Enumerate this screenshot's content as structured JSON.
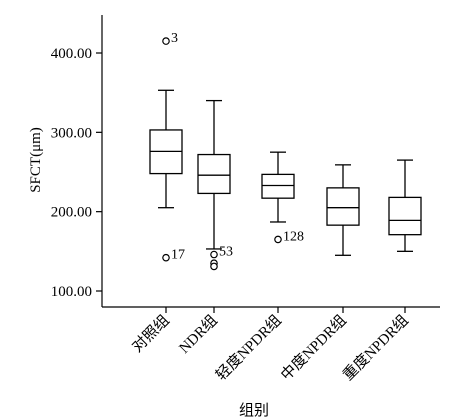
{
  "chart_data": {
    "type": "boxplot",
    "xlabel": "组别",
    "ylabel": "SFCT(μm)",
    "ylim": [
      80,
      450
    ],
    "y_ticks": [
      "100.00",
      "200.00",
      "300.00",
      "400.00"
    ],
    "y_tick_values": [
      100,
      200,
      300,
      400
    ],
    "categories": [
      "对照组",
      "NDR组",
      "轻度NPDR组",
      "中度NPDR组",
      "重度NPDR组"
    ],
    "boxes": [
      {
        "min": 205,
        "q1": 248,
        "median": 276,
        "q3": 303,
        "max": 353,
        "outliers": [
          {
            "value": 415,
            "label": "3"
          },
          {
            "value": 142,
            "label": "17"
          }
        ]
      },
      {
        "min": 153,
        "q1": 223,
        "median": 246,
        "q3": 272,
        "max": 340,
        "outliers": [
          {
            "value": 146,
            "label": "53"
          },
          {
            "value": 135,
            "label": ""
          },
          {
            "value": 131,
            "label": ""
          }
        ]
      },
      {
        "min": 187,
        "q1": 217,
        "median": 233,
        "q3": 247,
        "max": 275,
        "outliers": [
          {
            "value": 165,
            "label": "128"
          }
        ]
      },
      {
        "min": 145,
        "q1": 183,
        "median": 205,
        "q3": 230,
        "max": 259,
        "outliers": []
      },
      {
        "min": 150,
        "q1": 171,
        "median": 189,
        "q3": 218,
        "max": 265,
        "outliers": []
      }
    ]
  }
}
